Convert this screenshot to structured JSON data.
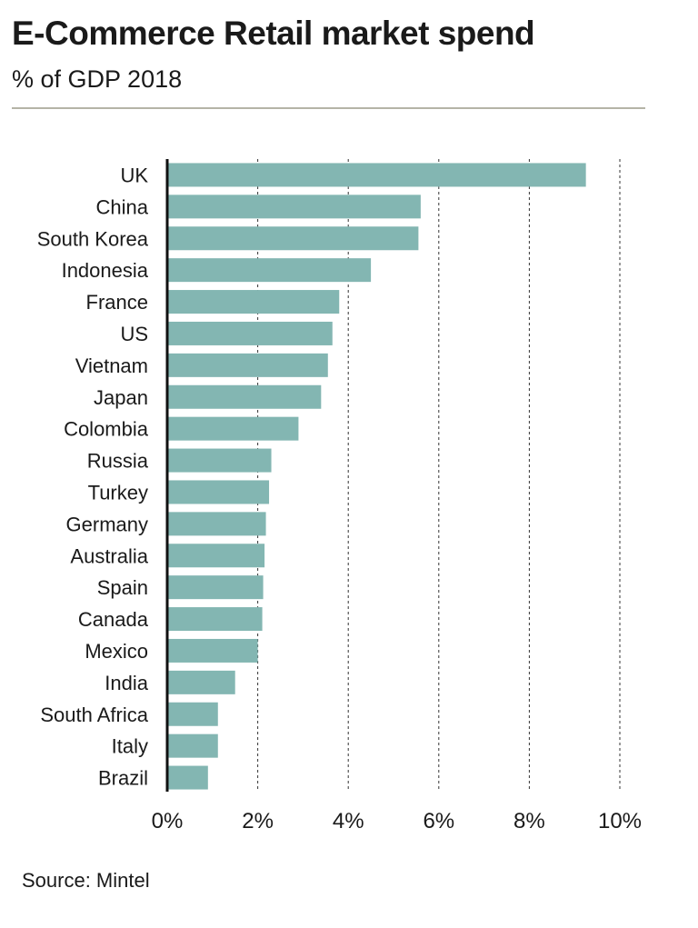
{
  "header": {
    "title": "E-Commerce Retail market spend",
    "subtitle": "% of GDP 2018"
  },
  "footer": {
    "source": "Source: Mintel"
  },
  "colors": {
    "bar": "#83b6b2",
    "axis": "#111111",
    "grid": "#333333",
    "rule": "#b5b4a7"
  },
  "chart_data": {
    "type": "bar",
    "orientation": "horizontal",
    "title": "E-Commerce Retail market spend",
    "subtitle": "% of GDP 2018",
    "xlabel": "",
    "ylabel": "",
    "xlim": [
      0,
      10
    ],
    "xticks": [
      0,
      2,
      4,
      6,
      8,
      10
    ],
    "xtick_labels": [
      "0%",
      "2%",
      "4%",
      "6%",
      "8%",
      "10%"
    ],
    "grid": "vertical dashed",
    "legend": "none",
    "categories": [
      "UK",
      "China",
      "South Korea",
      "Indonesia",
      "France",
      "US",
      "Vietnam",
      "Japan",
      "Colombia",
      "Russia",
      "Turkey",
      "Germany",
      "Australia",
      "Spain",
      "Canada",
      "Mexico",
      "India",
      "South Africa",
      "Italy",
      "Brazil"
    ],
    "values": [
      9.25,
      5.6,
      5.55,
      4.5,
      3.8,
      3.65,
      3.55,
      3.4,
      2.9,
      2.3,
      2.25,
      2.18,
      2.15,
      2.12,
      2.1,
      2.0,
      1.5,
      1.12,
      1.12,
      0.9
    ]
  }
}
